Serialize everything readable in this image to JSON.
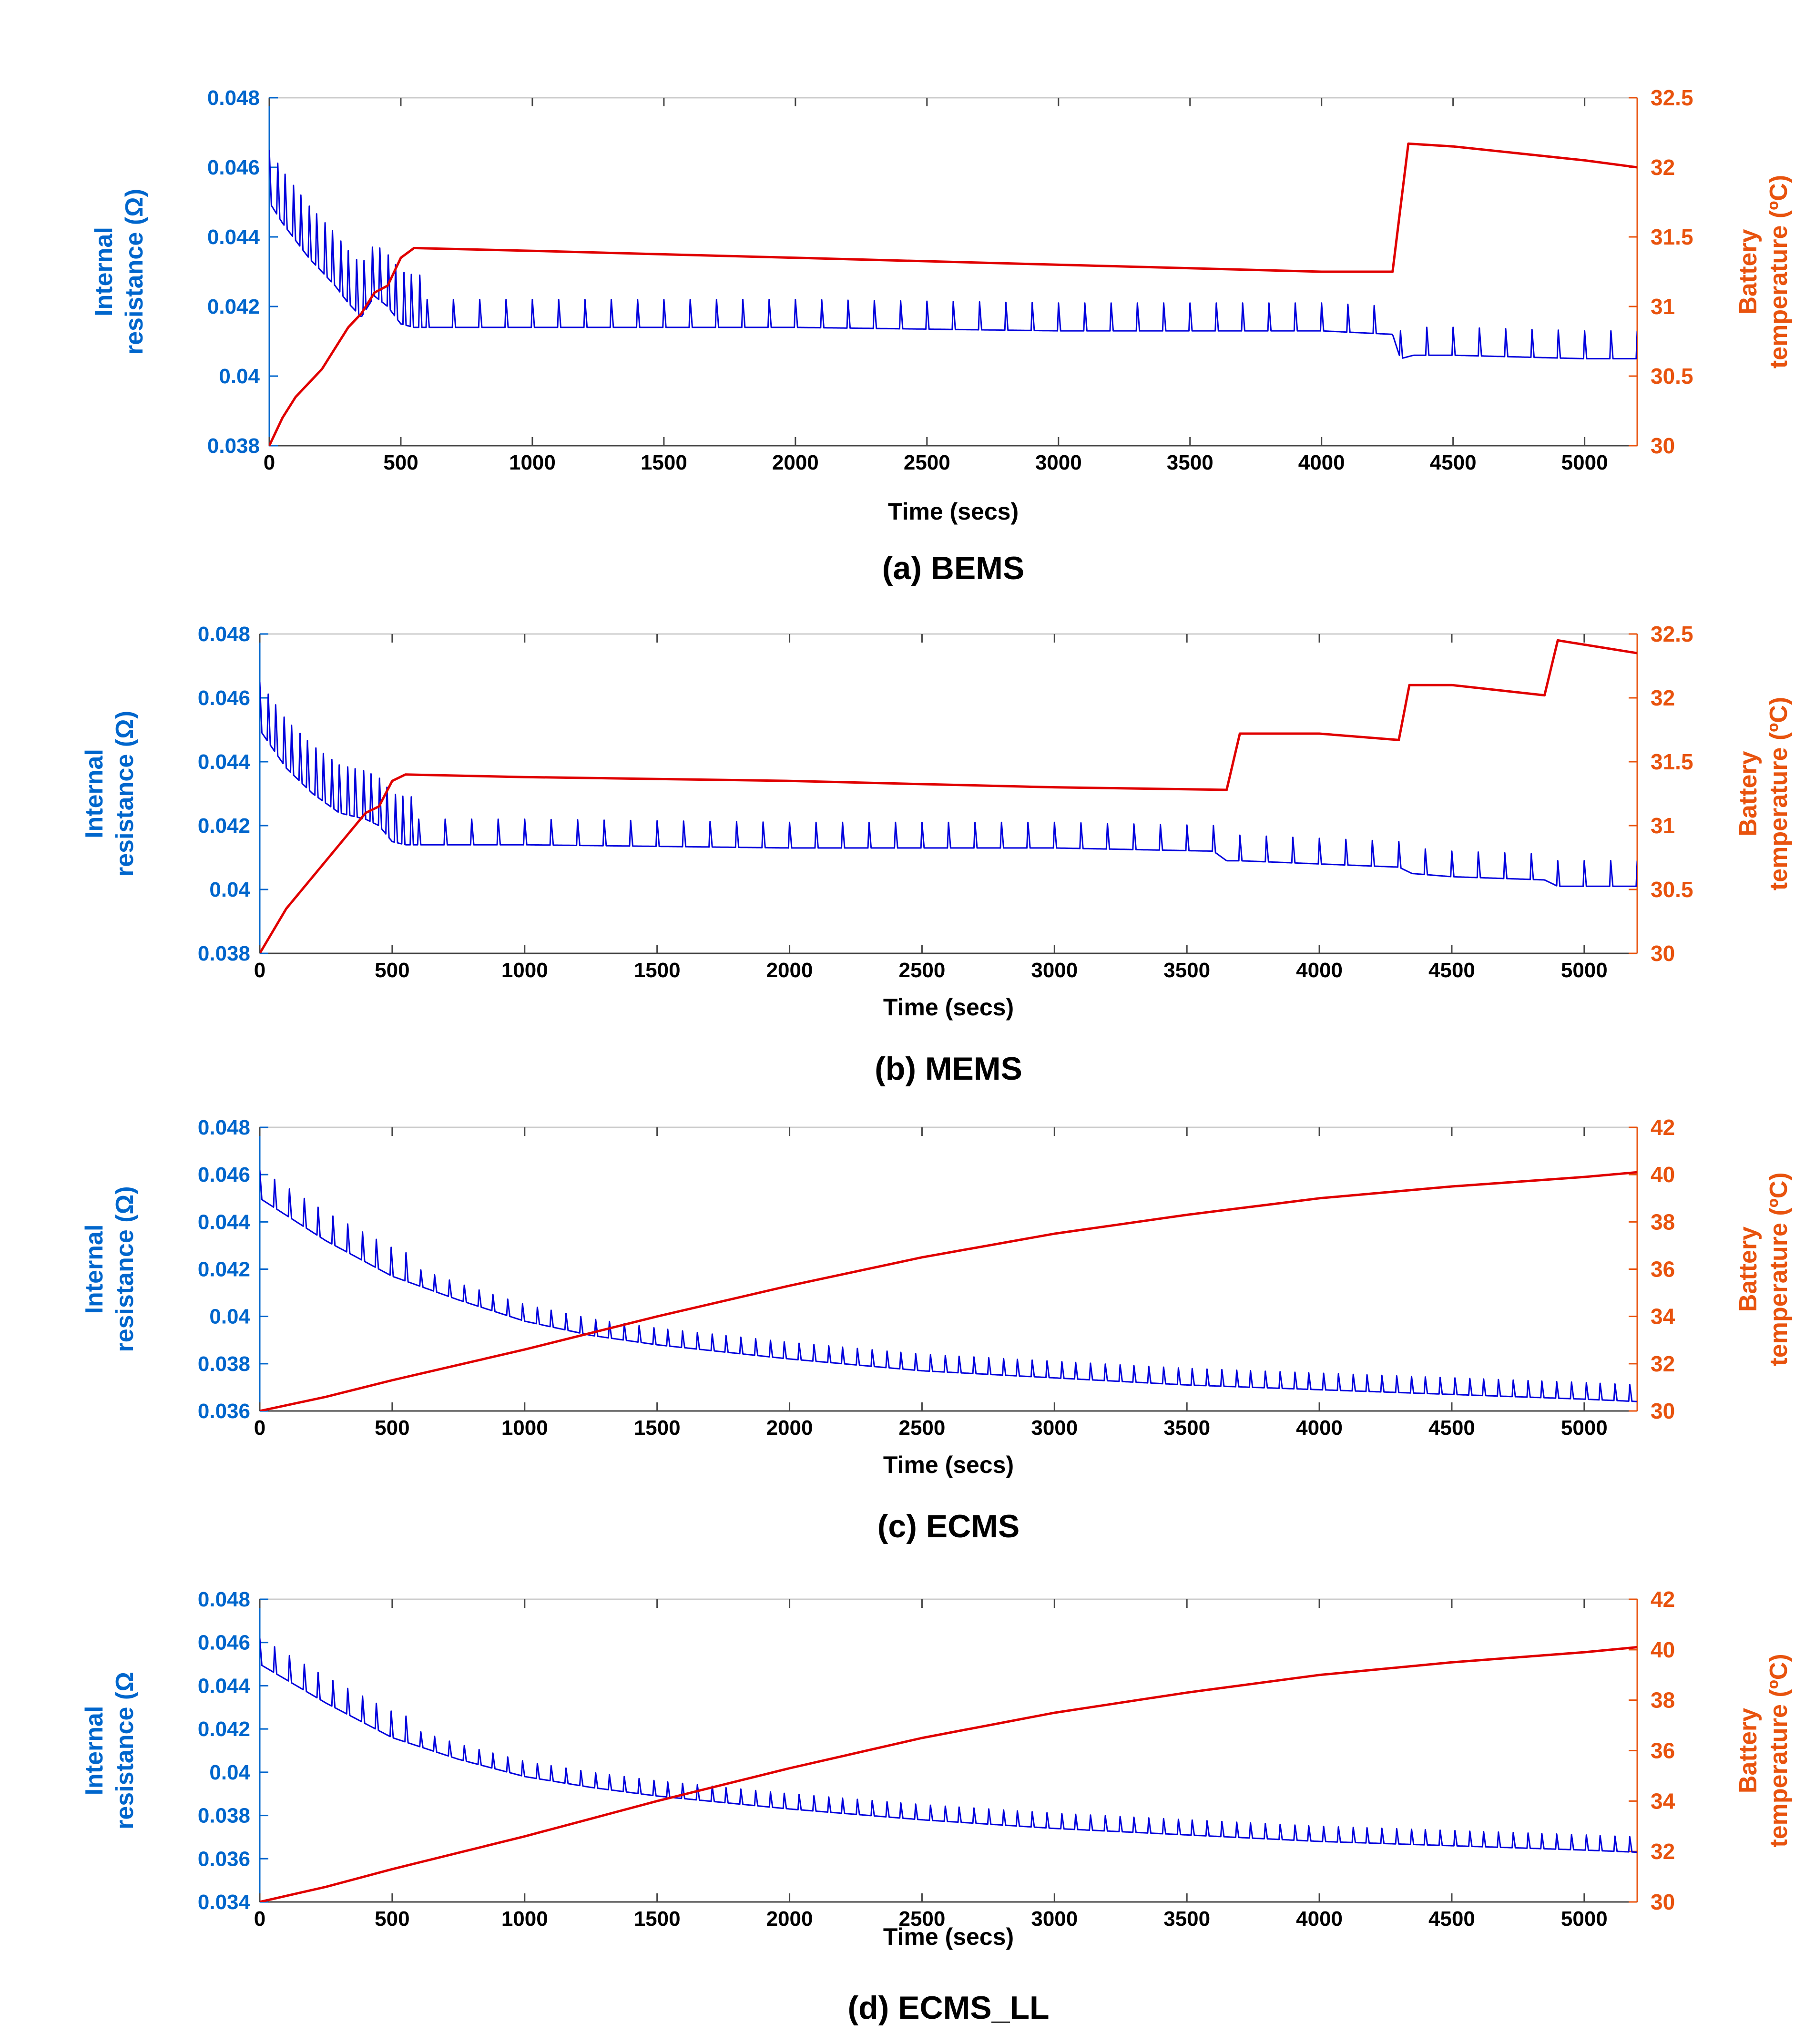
{
  "colors": {
    "left_axis": "#0066cc",
    "right_axis": "#e8530e",
    "resistance_line": "#0000dd",
    "temperature_line": "#e00000",
    "frame": "#444444"
  },
  "chart_data": [
    {
      "type": "line",
      "caption": "(a) BEMS",
      "xlabel": "Time (secs)",
      "ylabel_left": [
        "Internal",
        "resistance (Ω)"
      ],
      "ylabel_right": [
        "Battery",
        "temperature (ºC)"
      ],
      "xlim": [
        0,
        5200
      ],
      "ylim_left": [
        0.038,
        0.048
      ],
      "ylim_right": [
        30,
        32.5
      ],
      "x_ticks": [
        0,
        500,
        1000,
        1500,
        2000,
        2500,
        3000,
        3500,
        4000,
        4500,
        5000
      ],
      "y_ticks_left": [
        0.038,
        0.04,
        0.042,
        0.044,
        0.046,
        0.048
      ],
      "y_ticks_right": [
        30,
        30.5,
        31,
        31.5,
        32,
        32.5
      ],
      "series": [
        {
          "axis": "left",
          "x": [
            0,
            50,
            100,
            150,
            200,
            250,
            300,
            350,
            400,
            450,
            500,
            550,
            1000,
            2000,
            3000,
            4000,
            4270,
            4300,
            4350,
            4500,
            5000,
            5200
          ],
          "y": [
            0.045,
            0.0444,
            0.0439,
            0.0434,
            0.043,
            0.0426,
            0.0421,
            0.0417,
            0.0423,
            0.042,
            0.0415,
            0.0414,
            0.0414,
            0.0414,
            0.0413,
            0.0413,
            0.0412,
            0.0405,
            0.0406,
            0.0406,
            0.0405,
            0.0405
          ],
          "spikes": {
            "start": 0,
            "end": 5200,
            "period": 30,
            "amp_early": 0.0015,
            "period_late": 100,
            "amp_late": 0.0008
          }
        },
        {
          "axis": "right",
          "x": [
            0,
            50,
            100,
            150,
            200,
            250,
            300,
            350,
            400,
            450,
            500,
            550,
            1000,
            2000,
            3000,
            4000,
            4270,
            4330,
            4500,
            5000,
            5200
          ],
          "y": [
            30,
            30.2,
            30.35,
            30.45,
            30.55,
            30.7,
            30.85,
            30.95,
            31.1,
            31.15,
            31.35,
            31.42,
            31.4,
            31.35,
            31.3,
            31.25,
            31.25,
            32.17,
            32.15,
            32.05,
            32.0
          ]
        }
      ]
    },
    {
      "type": "line",
      "caption": "(b) MEMS",
      "xlabel": "Time (secs)",
      "ylabel_left": [
        "Internal",
        "resistance (Ω)"
      ],
      "ylabel_right": [
        "Battery",
        "temperature (ºC)"
      ],
      "xlim": [
        0,
        5200
      ],
      "ylim_left": [
        0.038,
        0.048
      ],
      "ylim_right": [
        30,
        32.5
      ],
      "x_ticks": [
        0,
        500,
        1000,
        1500,
        2000,
        2500,
        3000,
        3500,
        4000,
        4500,
        5000
      ],
      "y_ticks_left": [
        0.038,
        0.04,
        0.042,
        0.044,
        0.046,
        0.048
      ],
      "y_ticks_right": [
        30,
        30.5,
        31,
        31.5,
        32,
        32.5
      ],
      "series": [
        {
          "axis": "left",
          "x": [
            0,
            100,
            200,
            300,
            400,
            450,
            500,
            550,
            1000,
            2000,
            3000,
            3600,
            3650,
            3700,
            4000,
            4300,
            4350,
            4500,
            4850,
            4900,
            5200
          ],
          "y": [
            0.045,
            0.0438,
            0.043,
            0.0424,
            0.0422,
            0.042,
            0.0415,
            0.0414,
            0.0414,
            0.0413,
            0.0413,
            0.0412,
            0.0409,
            0.0409,
            0.0408,
            0.0407,
            0.0405,
            0.0404,
            0.0403,
            0.0401,
            0.0401
          ],
          "spikes": {
            "start": 0,
            "end": 5200,
            "period": 30,
            "amp_early": 0.0015,
            "period_late": 100,
            "amp_late": 0.0008
          }
        },
        {
          "axis": "right",
          "x": [
            0,
            100,
            200,
            300,
            400,
            450,
            500,
            550,
            1000,
            2000,
            3000,
            3650,
            3700,
            4000,
            4300,
            4340,
            4500,
            4850,
            4900,
            5200
          ],
          "y": [
            30,
            30.35,
            30.6,
            30.85,
            31.1,
            31.15,
            31.35,
            31.4,
            31.38,
            31.35,
            31.3,
            31.28,
            31.72,
            31.72,
            31.67,
            32.1,
            32.1,
            32.02,
            32.45,
            32.35
          ]
        }
      ]
    },
    {
      "type": "line",
      "caption": "(c) ECMS",
      "xlabel": "Time (secs)",
      "ylabel_left": [
        "Internal",
        "resistance (Ω)"
      ],
      "ylabel_right": [
        "Battery",
        "temperature (ºC)"
      ],
      "xlim": [
        0,
        5200
      ],
      "ylim_left": [
        0.036,
        0.048
      ],
      "ylim_right": [
        30,
        42
      ],
      "x_ticks": [
        0,
        500,
        1000,
        1500,
        2000,
        2500,
        3000,
        3500,
        4000,
        4500,
        5000
      ],
      "y_ticks_left": [
        0.036,
        0.038,
        0.04,
        0.042,
        0.044,
        0.046,
        0.048
      ],
      "y_ticks_right": [
        30,
        32,
        34,
        36,
        38,
        40,
        42
      ],
      "series": [
        {
          "axis": "left",
          "x": [
            0,
            250,
            500,
            750,
            1000,
            1250,
            1500,
            2000,
            2500,
            3000,
            3500,
            4000,
            4500,
            5000,
            5200
          ],
          "y": [
            0.045,
            0.0432,
            0.0417,
            0.0407,
            0.0398,
            0.0392,
            0.0388,
            0.0382,
            0.0377,
            0.0374,
            0.0371,
            0.0369,
            0.0367,
            0.0365,
            0.0364
          ],
          "spikes": {
            "start": 0,
            "end": 5200,
            "period": 55,
            "amp_early": 0.0012,
            "period_late": 55,
            "amp_late": 0.0007
          }
        },
        {
          "axis": "right",
          "x": [
            0,
            250,
            500,
            750,
            1000,
            1250,
            1500,
            2000,
            2500,
            3000,
            3500,
            4000,
            4500,
            5000,
            5200
          ],
          "y": [
            30,
            30.6,
            31.3,
            31.95,
            32.6,
            33.3,
            34,
            35.3,
            36.5,
            37.5,
            38.3,
            39,
            39.5,
            39.9,
            40.1
          ]
        }
      ]
    },
    {
      "type": "line",
      "caption": "(d) ECMS_LL",
      "xlabel": "Time (secs)",
      "ylabel_left": [
        "Internal",
        "resistance (Ω"
      ],
      "ylabel_right": [
        "Battery",
        "temperature (ºC)"
      ],
      "xlim": [
        0,
        5200
      ],
      "ylim_left": [
        0.034,
        0.048
      ],
      "ylim_right": [
        30,
        42
      ],
      "x_ticks": [
        0,
        500,
        1000,
        1500,
        2000,
        2500,
        3000,
        3500,
        4000,
        4500,
        5000
      ],
      "y_ticks_left": [
        0.034,
        0.036,
        0.038,
        0.04,
        0.042,
        0.044,
        0.046,
        0.048
      ],
      "y_ticks_right": [
        30,
        32,
        34,
        36,
        38,
        40,
        42
      ],
      "series": [
        {
          "axis": "left",
          "x": [
            0,
            250,
            500,
            750,
            1000,
            1250,
            1500,
            2000,
            2500,
            3000,
            3500,
            4000,
            4500,
            5000,
            5200
          ],
          "y": [
            0.045,
            0.0432,
            0.0416,
            0.0406,
            0.0398,
            0.0393,
            0.0389,
            0.0383,
            0.0378,
            0.0374,
            0.0371,
            0.0368,
            0.0366,
            0.0364,
            0.0363
          ],
          "spikes": {
            "start": 0,
            "end": 5200,
            "period": 55,
            "amp_early": 0.0012,
            "period_late": 55,
            "amp_late": 0.0007
          }
        },
        {
          "axis": "right",
          "x": [
            0,
            250,
            500,
            750,
            1000,
            1250,
            1500,
            2000,
            2500,
            3000,
            3500,
            4000,
            4500,
            5000,
            5200
          ],
          "y": [
            30,
            30.6,
            31.3,
            31.95,
            32.6,
            33.3,
            34,
            35.3,
            36.5,
            37.5,
            38.3,
            39,
            39.5,
            39.9,
            40.1
          ]
        }
      ]
    }
  ]
}
